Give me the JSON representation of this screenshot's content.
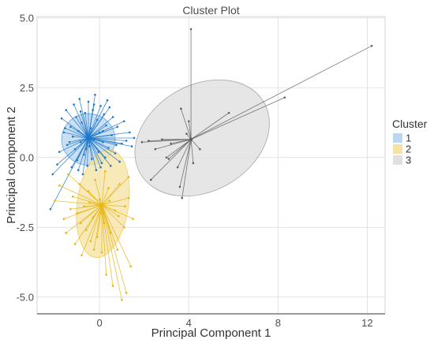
{
  "chart_data": {
    "type": "scatter",
    "title": "Cluster Plot",
    "xlabel": "Principal Component 1",
    "ylabel": "Principal component 2",
    "xlim": [
      -2.8,
      12.8
    ],
    "ylim": [
      -5.6,
      5.05
    ],
    "x_ticks": [
      0,
      4,
      8,
      12
    ],
    "y_ticks": [
      5.0,
      2.5,
      0.0,
      -2.5,
      -5.0
    ],
    "x_tick_labels": [
      "0",
      "4",
      "8",
      "12"
    ],
    "y_tick_labels": [
      "5.0",
      "2.5",
      "0.0",
      "-2.5",
      "-5.0"
    ],
    "grid": true,
    "legend": {
      "title": "Cluster",
      "position": "right"
    },
    "series": [
      {
        "name": "1",
        "color": "#1f77c9",
        "fill": "#bcd7f0",
        "center": [
          -0.5,
          0.7
        ],
        "ellipse": {
          "cx": -0.5,
          "cy": 0.65,
          "rx": 1.2,
          "ry": 0.92,
          "angle": 0
        },
        "points": [
          [
            -2.2,
            -1.85
          ],
          [
            -2.1,
            -0.6
          ],
          [
            -1.9,
            -0.25
          ],
          [
            -1.8,
            0.2
          ],
          [
            -1.6,
            0.9
          ],
          [
            -1.7,
            1.4
          ],
          [
            -1.5,
            1.7
          ],
          [
            -1.45,
            0.45
          ],
          [
            -1.3,
            1.1
          ],
          [
            -1.25,
            -0.35
          ],
          [
            -1.2,
            0.75
          ],
          [
            -1.15,
            1.9
          ],
          [
            -1.1,
            0.3
          ],
          [
            -1.05,
            1.45
          ],
          [
            -1.0,
            -0.1
          ],
          [
            -0.95,
            0.95
          ],
          [
            -0.9,
            2.1
          ],
          [
            -0.85,
            0.55
          ],
          [
            -0.8,
            1.25
          ],
          [
            -0.75,
            -0.6
          ],
          [
            -0.7,
            0.1
          ],
          [
            -0.65,
            1.6
          ],
          [
            -0.6,
            0.85
          ],
          [
            -0.55,
            -0.3
          ],
          [
            -0.5,
            2.0
          ],
          [
            -0.45,
            0.4
          ],
          [
            -0.4,
            1.05
          ],
          [
            -0.35,
            -0.05
          ],
          [
            -0.3,
            1.7
          ],
          [
            -0.25,
            0.65
          ],
          [
            -0.2,
            2.25
          ],
          [
            -0.15,
            -0.45
          ],
          [
            -0.1,
            1.35
          ],
          [
            -0.05,
            0.2
          ],
          [
            0.0,
            0.9
          ],
          [
            0.05,
            1.85
          ],
          [
            0.1,
            -0.2
          ],
          [
            0.15,
            0.55
          ],
          [
            0.2,
            1.55
          ],
          [
            0.25,
            0.0
          ],
          [
            0.3,
            1.15
          ],
          [
            0.35,
            2.05
          ],
          [
            0.4,
            0.35
          ],
          [
            0.5,
            -0.3
          ],
          [
            0.55,
            0.8
          ],
          [
            0.6,
            1.45
          ],
          [
            0.7,
            0.15
          ],
          [
            0.8,
            1.1
          ],
          [
            0.9,
            -0.15
          ],
          [
            1.0,
            0.5
          ],
          [
            1.1,
            1.3
          ],
          [
            1.2,
            0.6
          ],
          [
            1.35,
            0.9
          ],
          [
            1.45,
            0.4
          ],
          [
            1.55,
            0.7
          ],
          [
            -1.35,
            0.55
          ],
          [
            -0.95,
            -0.45
          ],
          [
            -0.6,
            0.3
          ],
          [
            -0.25,
            1.9
          ],
          [
            0.15,
            0.95
          ],
          [
            0.45,
            1.8
          ],
          [
            0.75,
            0.45
          ],
          [
            -1.55,
            1.05
          ],
          [
            -0.85,
            1.65
          ],
          [
            0.05,
            -0.35
          ]
        ]
      },
      {
        "name": "2",
        "color": "#e8b514",
        "fill": "#f5e3a6",
        "center": [
          0.1,
          -1.7
        ],
        "ellipse": {
          "cx": 0.15,
          "cy": -1.65,
          "rx": 1.15,
          "ry": 1.95,
          "angle": -8
        },
        "points": [
          [
            -2.0,
            -1.55
          ],
          [
            -1.8,
            -1.0
          ],
          [
            -1.6,
            -2.2
          ],
          [
            -1.5,
            -2.7
          ],
          [
            -1.4,
            -0.6
          ],
          [
            -1.2,
            -1.4
          ],
          [
            -1.1,
            -3.1
          ],
          [
            -1.0,
            -2.0
          ],
          [
            -0.9,
            -0.95
          ],
          [
            -0.8,
            -3.5
          ],
          [
            -0.7,
            -1.75
          ],
          [
            -0.6,
            -2.6
          ],
          [
            -0.5,
            -1.2
          ],
          [
            -0.4,
            -3.0
          ],
          [
            -0.3,
            -2.15
          ],
          [
            -0.2,
            -0.8
          ],
          [
            -0.1,
            -2.85
          ],
          [
            0.0,
            -1.5
          ],
          [
            0.1,
            -3.4
          ],
          [
            0.2,
            -2.35
          ],
          [
            0.3,
            -4.2
          ],
          [
            0.4,
            -1.1
          ],
          [
            0.5,
            -2.7
          ],
          [
            0.6,
            -4.6
          ],
          [
            0.7,
            -1.9
          ],
          [
            0.8,
            -3.3
          ],
          [
            0.9,
            -0.95
          ],
          [
            1.0,
            -5.1
          ],
          [
            1.1,
            -2.5
          ],
          [
            1.2,
            -4.85
          ],
          [
            1.3,
            -1.45
          ],
          [
            1.4,
            -3.9
          ],
          [
            1.5,
            -2.2
          ],
          [
            1.3,
            -0.7
          ],
          [
            -1.3,
            -1.85
          ],
          [
            -0.85,
            -2.35
          ],
          [
            -0.45,
            -1.6
          ],
          [
            0.05,
            -2.0
          ],
          [
            0.45,
            -1.55
          ],
          [
            0.85,
            -2.1
          ],
          [
            1.15,
            -1.75
          ],
          [
            0.25,
            -0.5
          ],
          [
            -0.25,
            -3.3
          ]
        ]
      },
      {
        "name": "3",
        "color": "#5e5e5e",
        "fill": "#e0e0e0",
        "center": [
          4.1,
          0.65
        ],
        "ellipse": {
          "cx": 4.6,
          "cy": 0.7,
          "rx": 3.2,
          "ry": 1.9,
          "angle": 30
        },
        "points": [
          [
            4.1,
            4.6
          ],
          [
            12.2,
            4.0
          ],
          [
            8.3,
            2.15
          ],
          [
            5.8,
            1.6
          ],
          [
            1.9,
            0.55
          ],
          [
            2.3,
            -0.8
          ],
          [
            2.5,
            0.3
          ],
          [
            2.8,
            0.65
          ],
          [
            3.1,
            -0.05
          ],
          [
            3.2,
            0.5
          ],
          [
            3.5,
            -0.35
          ],
          [
            3.6,
            -1.05
          ],
          [
            3.7,
            -1.45
          ],
          [
            3.9,
            0.85
          ],
          [
            4.0,
            1.3
          ],
          [
            4.2,
            -0.2
          ],
          [
            3.65,
            1.75
          ],
          [
            2.2,
            0.6
          ],
          [
            3.0,
            0.0
          ],
          [
            4.5,
            0.3
          ]
        ]
      }
    ]
  }
}
